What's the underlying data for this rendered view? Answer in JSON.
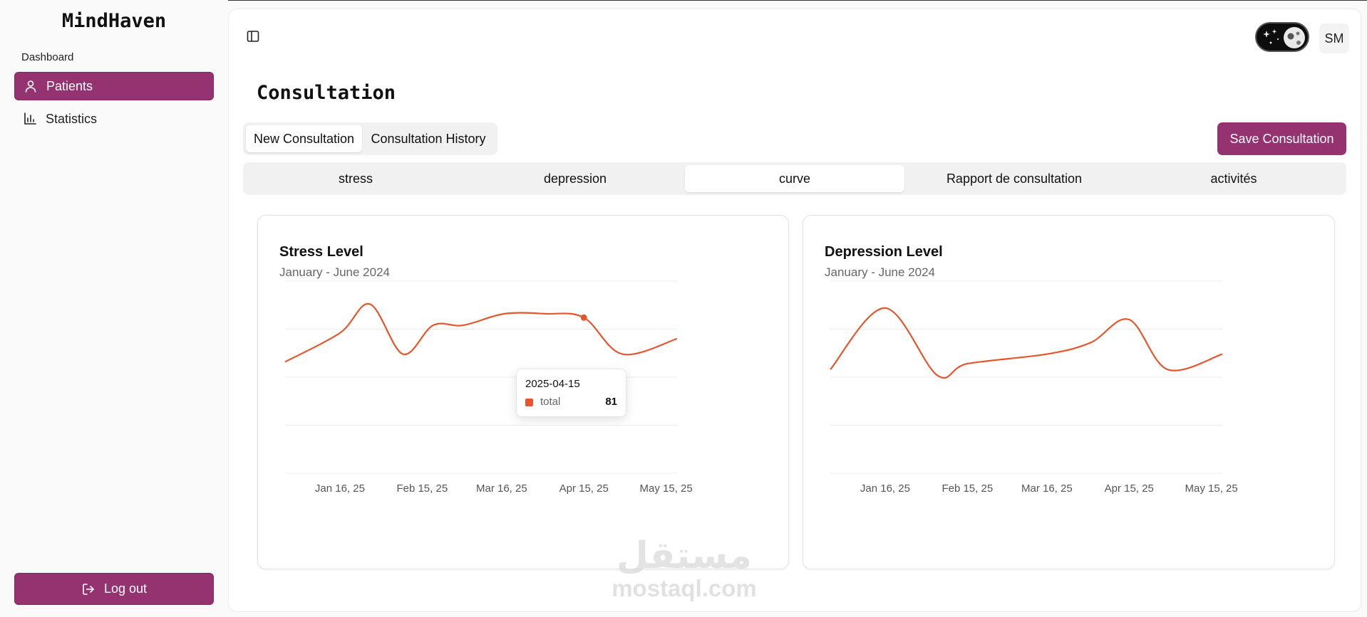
{
  "app": {
    "brand": "MindHaven"
  },
  "sidebar": {
    "section": "Dashboard",
    "items": [
      {
        "label": "Patients",
        "icon": "user-icon",
        "active": true
      },
      {
        "label": "Statistics",
        "icon": "bar-chart-icon",
        "active": false
      }
    ],
    "logout_label": "Log out"
  },
  "header": {
    "avatar_initials": "SM",
    "theme_toggle": "dark-mode"
  },
  "page": {
    "title": "Consultation",
    "tabs": [
      {
        "label": "New Consultation",
        "active": true
      },
      {
        "label": "Consultation History",
        "active": false
      }
    ],
    "save_label": "Save Consultation",
    "subtabs": [
      {
        "label": "stress",
        "active": false
      },
      {
        "label": "depression",
        "active": false
      },
      {
        "label": "curve",
        "active": true
      },
      {
        "label": "Rapport de consultation",
        "active": false
      },
      {
        "label": "activités",
        "active": false
      }
    ]
  },
  "colors": {
    "accent": "#953270",
    "series": "#e4572e"
  },
  "tooltip": {
    "date": "2025-04-15",
    "series": "total",
    "value": "81"
  },
  "watermark": {
    "arabic": "مستقل",
    "latin": "mostaql.com"
  },
  "chart_data": [
    {
      "type": "line",
      "title": "Stress Level",
      "subtitle": "January - June 2024",
      "x": [
        "2024-12-27",
        "2025-01-16",
        "2025-01-27",
        "2025-02-08",
        "2025-02-19",
        "2025-03-02",
        "2025-03-17",
        "2025-04-01",
        "2025-04-15",
        "2025-04-29",
        "2025-05-19"
      ],
      "series": [
        {
          "values": [
            58,
            73,
            88,
            62,
            77,
            77,
            83,
            83,
            81,
            62,
            70
          ]
        }
      ],
      "xticks": [
        "Jan 16, 25",
        "Feb 15, 25",
        "Mar 16, 25",
        "Apr 15, 25",
        "May 15, 25"
      ],
      "ylim": [
        0,
        100
      ],
      "grid": true,
      "highlight": {
        "x": "2025-04-15",
        "value": 81
      }
    },
    {
      "type": "line",
      "title": "Depression Level",
      "subtitle": "January - June 2024",
      "x": [
        "2024-12-27",
        "2025-01-16",
        "2025-02-04",
        "2025-02-15",
        "2025-03-16",
        "2025-04-01",
        "2025-04-15",
        "2025-04-29",
        "2025-05-19"
      ],
      "series": [
        {
          "values": [
            54,
            86,
            51,
            57,
            62,
            68,
            80,
            54,
            62
          ]
        }
      ],
      "xticks": [
        "Jan 16, 25",
        "Feb 15, 25",
        "Mar 16, 25",
        "Apr 15, 25",
        "May 15, 25"
      ],
      "ylim": [
        0,
        100
      ],
      "grid": true
    }
  ]
}
